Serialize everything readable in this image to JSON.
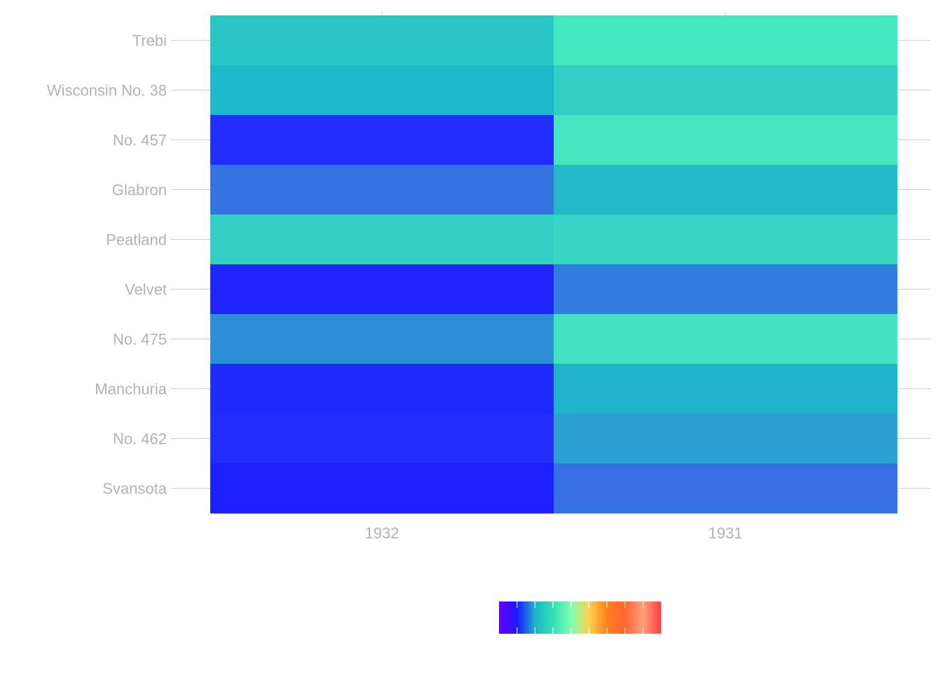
{
  "chart_data": {
    "type": "heatmap",
    "title": "",
    "xlabel": "",
    "ylabel": "",
    "x_categories": [
      "1932",
      "1931"
    ],
    "y_categories": [
      "Trebi",
      "Wisconsin No. 38",
      "No. 457",
      "Glabron",
      "Peatland",
      "Velvet",
      "No. 475",
      "Manchuria",
      "No. 462",
      "Svansota"
    ],
    "cells": [
      {
        "variety": "Trebi",
        "year": "1932",
        "color": "#2ac6c5"
      },
      {
        "variety": "Trebi",
        "year": "1931",
        "color": "#45e9bf"
      },
      {
        "variety": "Wisconsin No. 38",
        "year": "1932",
        "color": "#1db8ca"
      },
      {
        "variety": "Wisconsin No. 38",
        "year": "1931",
        "color": "#32d0c4"
      },
      {
        "variety": "No. 457",
        "year": "1932",
        "color": "#222efb"
      },
      {
        "variety": "No. 457",
        "year": "1931",
        "color": "#44e7c0"
      },
      {
        "variety": "Glabron",
        "year": "1932",
        "color": "#3473e1"
      },
      {
        "variety": "Glabron",
        "year": "1931",
        "color": "#22bac9"
      },
      {
        "variety": "Peatland",
        "year": "1932",
        "color": "#33cfc4"
      },
      {
        "variety": "Peatland",
        "year": "1931",
        "color": "#37d5c4"
      },
      {
        "variety": "Velvet",
        "year": "1932",
        "color": "#1f24fb"
      },
      {
        "variety": "Velvet",
        "year": "1931",
        "color": "#347be0"
      },
      {
        "variety": "No. 475",
        "year": "1932",
        "color": "#2d8fd7"
      },
      {
        "variety": "No. 475",
        "year": "1931",
        "color": "#40e2c2"
      },
      {
        "variety": "Manchuria",
        "year": "1932",
        "color": "#1f2afb"
      },
      {
        "variety": "Manchuria",
        "year": "1931",
        "color": "#1eb3cb"
      },
      {
        "variety": "No. 462",
        "year": "1932",
        "color": "#222cfb"
      },
      {
        "variety": "No. 462",
        "year": "1931",
        "color": "#2aa1d2"
      },
      {
        "variety": "Svansota",
        "year": "1932",
        "color": "#1c1ffb"
      },
      {
        "variety": "Svansota",
        "year": "1931",
        "color": "#3670e3"
      }
    ],
    "colorbar": {
      "stops": [
        "#6600ff",
        "#1a1aff",
        "#1cb3c8",
        "#33e0b0",
        "#7dffb0",
        "#ffd24d",
        "#ff7f1a",
        "#ff6633",
        "#ffa07a",
        "#ff4040"
      ],
      "tick_labels": []
    },
    "grid": true,
    "legend_position": "bottom"
  }
}
